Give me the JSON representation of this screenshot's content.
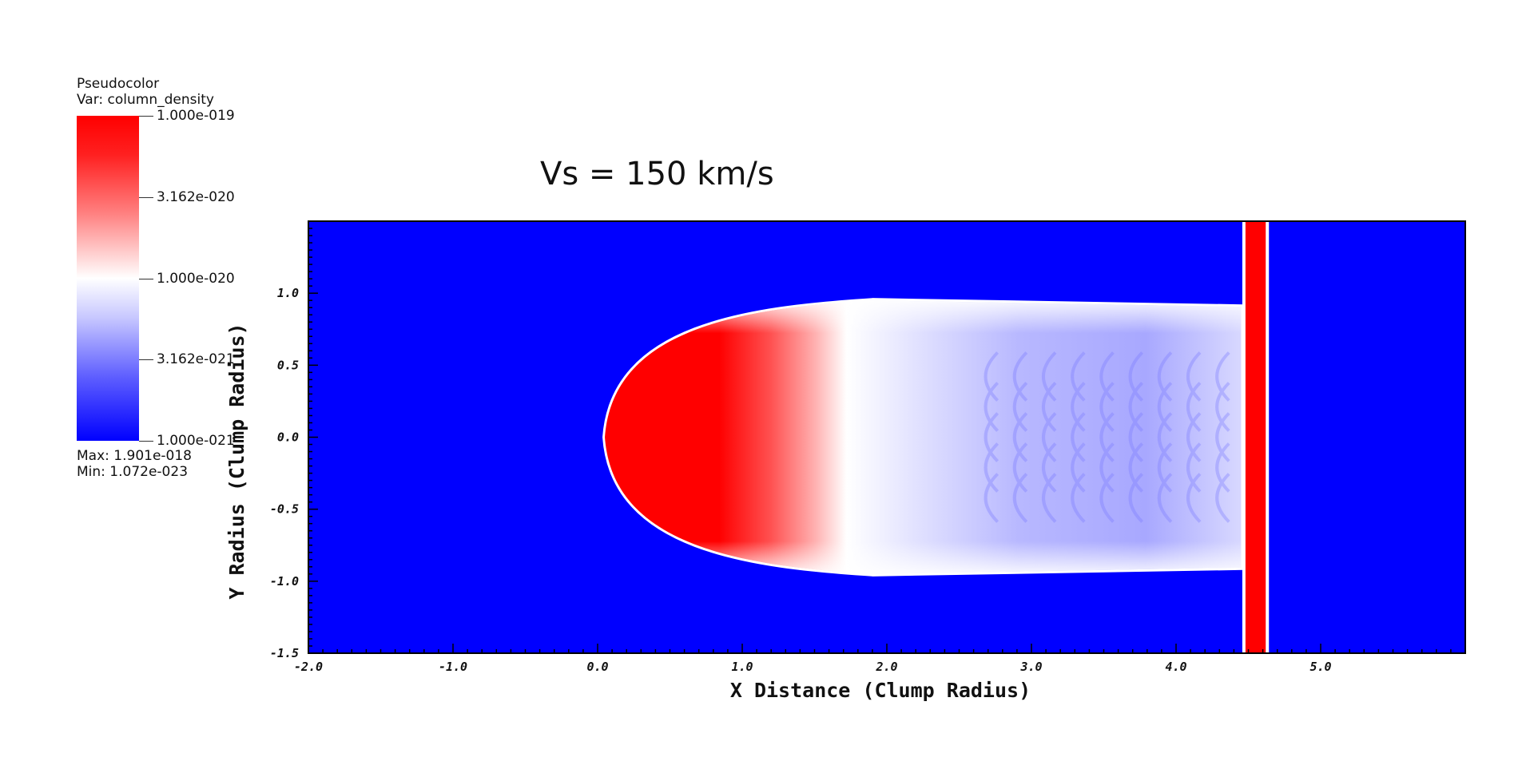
{
  "legend": {
    "title": "Pseudocolor",
    "variable": "Var: column_density",
    "max": "Max:  1.901e-018",
    "min": "Min:  1.072e-023",
    "tick_labels": [
      "1.000e-019",
      "3.162e-020",
      "1.000e-020",
      "3.162e-021",
      "1.000e-021"
    ]
  },
  "chart_data": {
    "type": "heatmap",
    "title": "Vs = 150 km/s",
    "xlabel": "X Distance (Clump Radius)",
    "ylabel": "Y Radius (Clump Radius)",
    "xlim": [
      -2.0,
      6.0
    ],
    "ylim": [
      -1.5,
      1.5
    ],
    "x_ticks": [
      -2.0,
      -1.0,
      0.0,
      1.0,
      2.0,
      3.0,
      4.0,
      5.0
    ],
    "x_tick_labels": [
      "-2.0",
      "-1.0",
      "0.0",
      "1.0",
      "2.0",
      "3.0",
      "4.0",
      "5.0"
    ],
    "y_ticks": [
      -1.5,
      -1.0,
      -0.5,
      0.0,
      0.5,
      1.0
    ],
    "y_tick_labels": [
      "-1.5",
      "-1.0",
      "-0.5",
      "0.0",
      "0.5",
      "1.0"
    ],
    "colormap": [
      "#0000ff",
      "#ffffff",
      "#ff0000"
    ],
    "color_scale": "log",
    "features": {
      "clump_head_x": 0.05,
      "clump_half_width": 0.95,
      "dense_core_end_x": 1.9,
      "tail_end_x": 4.45,
      "shock_front_x": [
        4.48,
        4.62
      ]
    }
  }
}
